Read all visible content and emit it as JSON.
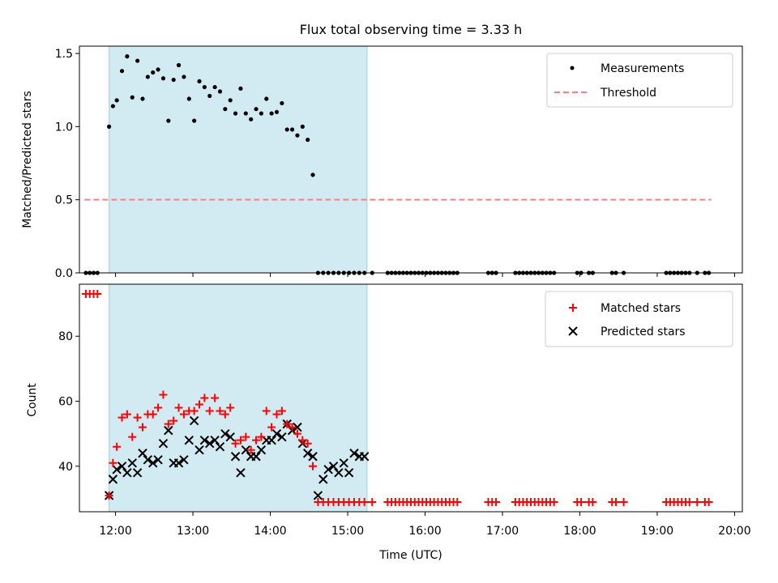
{
  "title": "Flux total observing time = 3.33 h",
  "xlabel": "Time (UTC)",
  "colors": {
    "measurements": "#000000",
    "threshold": "#ff7f7f",
    "matched": "#ff0000",
    "predicted": "#000000",
    "shade": "#add8e6"
  },
  "chart_data": [
    {
      "type": "scatter",
      "title": "Flux total observing time = 3.33 h",
      "ylabel": "Matched/Predicted stars",
      "xlabel": "",
      "xlim": [
        "11:32",
        "20:06"
      ],
      "ylim": [
        0,
        1.55
      ],
      "yticks": [
        0.0,
        0.5,
        1.0,
        1.5
      ],
      "ytick_labels": [
        "0.0",
        "0.5",
        "1.0",
        "1.5"
      ],
      "legend": {
        "placement": "top-right",
        "entries": [
          "Measurements",
          "Threshold"
        ]
      },
      "shaded_interval": [
        "11:55",
        "15:15"
      ],
      "threshold": {
        "name": "Threshold",
        "y": 0.5,
        "x": [
          "11:36",
          "19:42"
        ]
      },
      "series": [
        {
          "name": "Measurements",
          "x": [
            "11:37",
            "11:40",
            "11:43",
            "11:46",
            "11:55",
            "11:58",
            "12:01",
            "12:05",
            "12:09",
            "12:13",
            "12:17",
            "12:21",
            "12:25",
            "12:29",
            "12:33",
            "12:37",
            "12:41",
            "12:45",
            "12:49",
            "12:53",
            "12:57",
            "13:01",
            "13:05",
            "13:09",
            "13:13",
            "13:17",
            "13:21",
            "13:25",
            "13:29",
            "13:33",
            "13:37",
            "13:41",
            "13:45",
            "13:49",
            "13:53",
            "13:57",
            "14:01",
            "14:05",
            "14:09",
            "14:13",
            "14:17",
            "14:21",
            "14:25",
            "14:29",
            "14:33",
            "14:37",
            "14:41",
            "14:45",
            "14:49",
            "14:53",
            "14:57",
            "15:01",
            "15:05",
            "15:09",
            "15:13",
            "15:19",
            "15:31",
            "15:34",
            "15:37",
            "15:40",
            "15:43",
            "15:46",
            "15:49",
            "15:52",
            "15:55",
            "15:58",
            "16:01",
            "16:04",
            "16:07",
            "16:10",
            "16:13",
            "16:16",
            "16:19",
            "16:22",
            "16:25",
            "16:49",
            "16:52",
            "16:55",
            "17:10",
            "17:13",
            "17:16",
            "17:19",
            "17:22",
            "17:25",
            "17:28",
            "17:31",
            "17:34",
            "17:37",
            "17:40",
            "17:58",
            "18:01",
            "18:07",
            "18:10",
            "18:25",
            "18:28",
            "18:34",
            "19:07",
            "19:10",
            "19:13",
            "19:16",
            "19:19",
            "19:22",
            "19:25",
            "19:31",
            "19:37",
            "19:40"
          ],
          "y": [
            0,
            0,
            0,
            0,
            1.0,
            1.14,
            1.18,
            1.38,
            1.48,
            1.2,
            1.45,
            1.19,
            1.34,
            1.37,
            1.39,
            1.33,
            1.04,
            1.32,
            1.42,
            1.34,
            1.19,
            1.04,
            1.31,
            1.27,
            1.21,
            1.27,
            1.24,
            1.12,
            1.18,
            1.09,
            1.26,
            1.09,
            1.05,
            1.12,
            1.09,
            1.19,
            1.09,
            1.1,
            1.16,
            0.98,
            0.98,
            0.94,
            1.0,
            0.91,
            0.67,
            0,
            0,
            0,
            0,
            0,
            0,
            0,
            0,
            0,
            0,
            0,
            0,
            0,
            0,
            0,
            0,
            0,
            0,
            0,
            0,
            0,
            0,
            0,
            0,
            0,
            0,
            0,
            0,
            0,
            0,
            0,
            0,
            0,
            0,
            0,
            0,
            0,
            0,
            0,
            0,
            0,
            0,
            0,
            0,
            0,
            0,
            0,
            0,
            0,
            0,
            0,
            0,
            0,
            0,
            0,
            0,
            0,
            0,
            0,
            0,
            0
          ]
        }
      ]
    },
    {
      "type": "scatter",
      "title": "",
      "ylabel": "Count",
      "xlabel": "Time (UTC)",
      "xlim": [
        "11:32",
        "20:06"
      ],
      "ylim": [
        26,
        96
      ],
      "yticks": [
        40,
        60,
        80
      ],
      "ytick_labels": [
        "40",
        "60",
        "80"
      ],
      "xticks": [
        "12:00",
        "13:00",
        "14:00",
        "15:00",
        "16:00",
        "17:00",
        "18:00",
        "19:00",
        "20:00"
      ],
      "legend": {
        "placement": "top-right",
        "entries": [
          "Matched stars",
          "Predicted stars"
        ]
      },
      "shaded_interval": [
        "11:55",
        "15:15"
      ],
      "series": [
        {
          "name": "Matched stars",
          "x": [
            "11:37",
            "11:40",
            "11:43",
            "11:46",
            "11:55",
            "11:58",
            "12:01",
            "12:05",
            "12:09",
            "12:13",
            "12:17",
            "12:21",
            "12:25",
            "12:29",
            "12:33",
            "12:37",
            "12:41",
            "12:45",
            "12:49",
            "12:53",
            "12:57",
            "13:01",
            "13:05",
            "13:09",
            "13:13",
            "13:17",
            "13:21",
            "13:25",
            "13:29",
            "13:33",
            "13:37",
            "13:41",
            "13:45",
            "13:49",
            "13:53",
            "13:57",
            "14:01",
            "14:05",
            "14:09",
            "14:13",
            "14:17",
            "14:21",
            "14:25",
            "14:29",
            "14:33",
            "14:37",
            "14:41",
            "14:45",
            "14:49",
            "14:53",
            "14:57",
            "15:01",
            "15:05",
            "15:09",
            "15:13",
            "15:19",
            "15:31",
            "15:34",
            "15:37",
            "15:40",
            "15:43",
            "15:46",
            "15:49",
            "15:52",
            "15:55",
            "15:58",
            "16:01",
            "16:04",
            "16:07",
            "16:10",
            "16:13",
            "16:16",
            "16:19",
            "16:22",
            "16:25",
            "16:49",
            "16:52",
            "16:55",
            "17:10",
            "17:13",
            "17:16",
            "17:19",
            "17:22",
            "17:25",
            "17:28",
            "17:31",
            "17:34",
            "17:37",
            "17:40",
            "17:58",
            "18:01",
            "18:07",
            "18:10",
            "18:25",
            "18:28",
            "18:34",
            "19:07",
            "19:10",
            "19:13",
            "19:16",
            "19:19",
            "19:22",
            "19:25",
            "19:31",
            "19:37",
            "19:40"
          ],
          "y": [
            93,
            93,
            93,
            93,
            31,
            41,
            46,
            55,
            56,
            49,
            55,
            52,
            56,
            56,
            58,
            62,
            53,
            54,
            58,
            56,
            57,
            57,
            59,
            61,
            57,
            61,
            57,
            56,
            58,
            47,
            48,
            49,
            45,
            48,
            49,
            57,
            52,
            56,
            57,
            53,
            52,
            50,
            48,
            47,
            40,
            29,
            29,
            29,
            29,
            29,
            29,
            29,
            29,
            29,
            29,
            29,
            29,
            29,
            29,
            29,
            29,
            29,
            29,
            29,
            29,
            29,
            29,
            29,
            29,
            29,
            29,
            29,
            29,
            29,
            29,
            29,
            29,
            29,
            29,
            29,
            29,
            29,
            29,
            29,
            29,
            29,
            29,
            29,
            29,
            29,
            29,
            29,
            29,
            29,
            29,
            29,
            29,
            29,
            29,
            29,
            29,
            29,
            29,
            29,
            29,
            29
          ]
        },
        {
          "name": "Predicted stars",
          "x": [
            "11:55",
            "11:58",
            "12:01",
            "12:05",
            "12:09",
            "12:13",
            "12:17",
            "12:21",
            "12:25",
            "12:29",
            "12:33",
            "12:37",
            "12:41",
            "12:45",
            "12:49",
            "12:53",
            "12:57",
            "13:01",
            "13:05",
            "13:09",
            "13:13",
            "13:17",
            "13:21",
            "13:25",
            "13:29",
            "13:33",
            "13:37",
            "13:41",
            "13:45",
            "13:49",
            "13:53",
            "13:57",
            "14:01",
            "14:05",
            "14:09",
            "14:13",
            "14:17",
            "14:21",
            "14:25",
            "14:29",
            "14:33",
            "14:37",
            "14:41",
            "14:45",
            "14:49",
            "14:53",
            "14:57",
            "15:01",
            "15:05",
            "15:09",
            "15:13"
          ],
          "y": [
            31,
            36,
            39,
            40,
            38,
            41,
            38,
            44,
            42,
            41,
            42,
            47,
            51,
            41,
            41,
            42,
            48,
            54,
            45,
            48,
            47,
            48,
            46,
            50,
            49,
            43,
            38,
            45,
            43,
            43,
            45,
            48,
            48,
            50,
            49,
            53,
            51,
            52,
            47,
            44,
            43,
            31,
            36,
            39,
            40,
            38,
            41,
            38,
            44,
            43,
            43
          ]
        }
      ]
    }
  ]
}
